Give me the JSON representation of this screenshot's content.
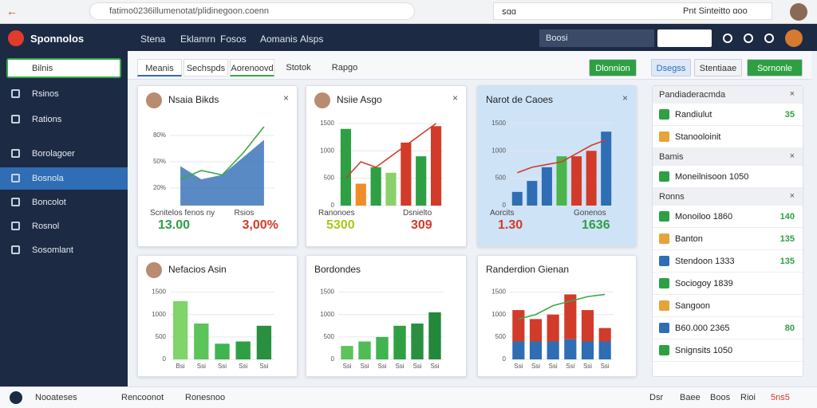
{
  "browser": {
    "url": "fatimo0236illumenotat/plidinegoon.coenn",
    "search": "ꜱɑɑ",
    "user_text": "Pnt Sinteitto ɑoo"
  },
  "app": {
    "logo": "Sponnolos",
    "nav": [
      "Stena",
      "Eklamrn",
      "Fosos",
      "Aomanis",
      "Alsps"
    ],
    "search": "Boosi"
  },
  "sidebar": {
    "search": "Bilnis",
    "items": [
      "Rsinos",
      "Rations",
      "Borolagoer",
      "Bosnola",
      "Boncolot",
      "Rosnol",
      "Sosomlant"
    ],
    "active": 3
  },
  "tabs": [
    "Meanis",
    "Sechspds",
    "Aorenoovd",
    "Stotok",
    "Rapgo"
  ],
  "buttons": [
    "Dlonnion",
    "Dsegss",
    "Stentiaae",
    "Sornonle"
  ],
  "cards": [
    {
      "title": "Nsaia Bikds",
      "chart": {
        "ylim": [
          0,
          100
        ],
        "yticks": [
          {
            "value": 20,
            "label": "20%"
          },
          {
            "value": 50,
            "label": "50%"
          },
          {
            "value": 80,
            "label": "80%"
          }
        ],
        "series": [
          {
            "kind": "area",
            "color": "#2f6db5",
            "values": [
              45,
              30,
              35,
              55,
              75
            ]
          },
          {
            "kind": "line",
            "color": "#3aa84a",
            "values": [
              30,
              40,
              35,
              60,
              90
            ]
          }
        ]
      },
      "stats": [
        {
          "label": "Scnitelos fenos ny",
          "value": "13.00",
          "color": "#2ea043"
        },
        {
          "label": "Rsios",
          "value": "3,00%",
          "color": "#d23b2a"
        }
      ]
    },
    {
      "title": "Nsiie Asgo",
      "chart": {
        "ylim": [
          0,
          1600
        ],
        "yticks": [
          0,
          500,
          1000,
          1500
        ],
        "series": [
          {
            "kind": "bar",
            "colors": [
              "#2ea043",
              "#f28c28",
              "#2ea043",
              "#8bd16a",
              "#d23b2a",
              "#2ea043",
              "#d23b2a"
            ],
            "values": [
              1400,
              400,
              700,
              600,
              1150,
              900,
              1450
            ]
          },
          {
            "kind": "line",
            "color": "#d23b2a",
            "values": [
              500,
              800,
              700,
              900,
              1100,
              1300,
              1500
            ]
          }
        ]
      },
      "stats": [
        {
          "label": "Ranonoes",
          "value": "5300",
          "color": "#a8c81a"
        },
        {
          "label": "Dsnielto",
          "value": "309",
          "color": "#d23b2a"
        }
      ]
    },
    {
      "title": "Narot de Caoes",
      "chart": {
        "ylim": [
          0,
          1600
        ],
        "yticks": [
          0,
          500,
          1000,
          1500
        ],
        "series": [
          {
            "kind": "bar",
            "colors": [
              "#2f6db5",
              "#2f6db5",
              "#2f6db5",
              "#4ab54a",
              "#d23b2a",
              "#d23b2a",
              "#2f6db5"
            ],
            "values": [
              250,
              450,
              700,
              900,
              900,
              1000,
              1350
            ]
          },
          {
            "kind": "line",
            "color": "#d23b2a",
            "values": [
              600,
              700,
              750,
              800,
              950,
              1100,
              1200
            ]
          }
        ]
      },
      "stats": [
        {
          "label": "Aorcits",
          "value": "1.30",
          "color": "#d23b2a"
        },
        {
          "label": "Gonenos",
          "value": "1636",
          "color": "#2ea043"
        }
      ]
    },
    {
      "title": "Nefacios Asin",
      "chart": {
        "ylim": [
          0,
          1600
        ],
        "yticks": [
          0,
          500,
          1000,
          1500
        ],
        "series": [
          {
            "kind": "bar",
            "colors": [
              "#7fd46a",
              "#5cc45a",
              "#3fb44f",
              "#2ea043",
              "#2a9040"
            ],
            "values": [
              1300,
              800,
              350,
              400,
              750
            ]
          }
        ],
        "categories": [
          "Bsi",
          "Ssi",
          "Ssi",
          "Ssi",
          "Ssi"
        ]
      },
      "stats": []
    },
    {
      "title": "Bordondes",
      "chart": {
        "ylim": [
          0,
          1600
        ],
        "yticks": [
          0,
          500,
          1000,
          1500
        ],
        "series": [
          {
            "kind": "bar",
            "colors": [
              "#5cc45a",
              "#4fbc55",
              "#3fb44f",
              "#2ea043",
              "#2a9040",
              "#24883a"
            ],
            "values": [
              300,
              400,
              500,
              750,
              800,
              1050
            ]
          }
        ],
        "categories": [
          "Ssi",
          "Ssi",
          "Ssi",
          "Ssi",
          "Ssi",
          "Ssi"
        ]
      },
      "stats": []
    },
    {
      "title": "Randerdion Gienan",
      "chart": {
        "ylim": [
          0,
          1600
        ],
        "yticks": [
          0,
          500,
          1000,
          1500
        ],
        "series": [
          {
            "kind": "stack",
            "color": "#2f6db5",
            "values": [
              400,
              400,
              400,
              450,
              400,
              400
            ]
          },
          {
            "kind": "stack",
            "color": "#d23b2a",
            "values": [
              700,
              500,
              600,
              1000,
              700,
              300
            ]
          },
          {
            "kind": "line",
            "color": "#3aa84a",
            "values": [
              900,
              1000,
              1200,
              1300,
              1400,
              1450
            ]
          }
        ],
        "categories": [
          "Ssi",
          "Ssi",
          "Ssi",
          "Ssi",
          "Ssi",
          "Ssi"
        ]
      },
      "stats": []
    }
  ],
  "panel": {
    "sections": [
      {
        "title": "Pandiaderacmda",
        "items": [
          {
            "label": "Randiulut",
            "value": "35"
          },
          {
            "label": "Stanooloinit"
          }
        ]
      },
      {
        "title": "Bamis",
        "items": [
          {
            "label": "Moneilnisoon 1050"
          }
        ]
      },
      {
        "title": "Ronns",
        "items": [
          {
            "label": "Monoiloo 1860",
            "value": "140"
          },
          {
            "label": "Banton",
            "value": "135"
          },
          {
            "label": "Stendoon 1333",
            "value": "135"
          },
          {
            "label": "Sociogoy 1839"
          },
          {
            "label": "Sangoon"
          },
          {
            "label": "B60.000 2365",
            "value": "80"
          },
          {
            "label": "Snignsits 1050"
          }
        ]
      }
    ]
  },
  "footer": {
    "left": [
      "Nooateses",
      "Rencoonot",
      "Ronesnoo"
    ],
    "right": [
      "Dsr",
      "Baee",
      "Boos",
      "Rioi",
      "5ns5"
    ]
  }
}
